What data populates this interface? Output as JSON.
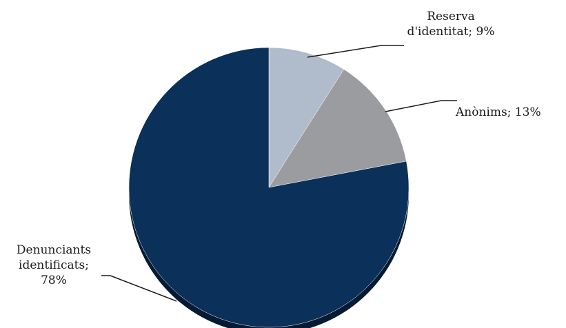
{
  "chart_data": {
    "type": "pie",
    "title": "",
    "slices": [
      {
        "name": "Reserva d'identitat",
        "value": 9,
        "color": "#b0bccb"
      },
      {
        "name": "Anònims",
        "value": 13,
        "color": "#9a9c9f"
      },
      {
        "name": "Denunciants identificats",
        "value": 78,
        "color": "#0b3059"
      }
    ],
    "labels": [
      {
        "lines": [
          "Reserva",
          "d'identitat; 9%"
        ]
      },
      {
        "lines": [
          "Anònims; 13%"
        ]
      },
      {
        "lines": [
          "Denunciants",
          "identificats;",
          "78%"
        ]
      }
    ],
    "start_angle": "12 o'clock",
    "direction": "clockwise",
    "legend": "none",
    "shadow_color": "#051a33",
    "leader_line_color": "#1a1a1a"
  }
}
